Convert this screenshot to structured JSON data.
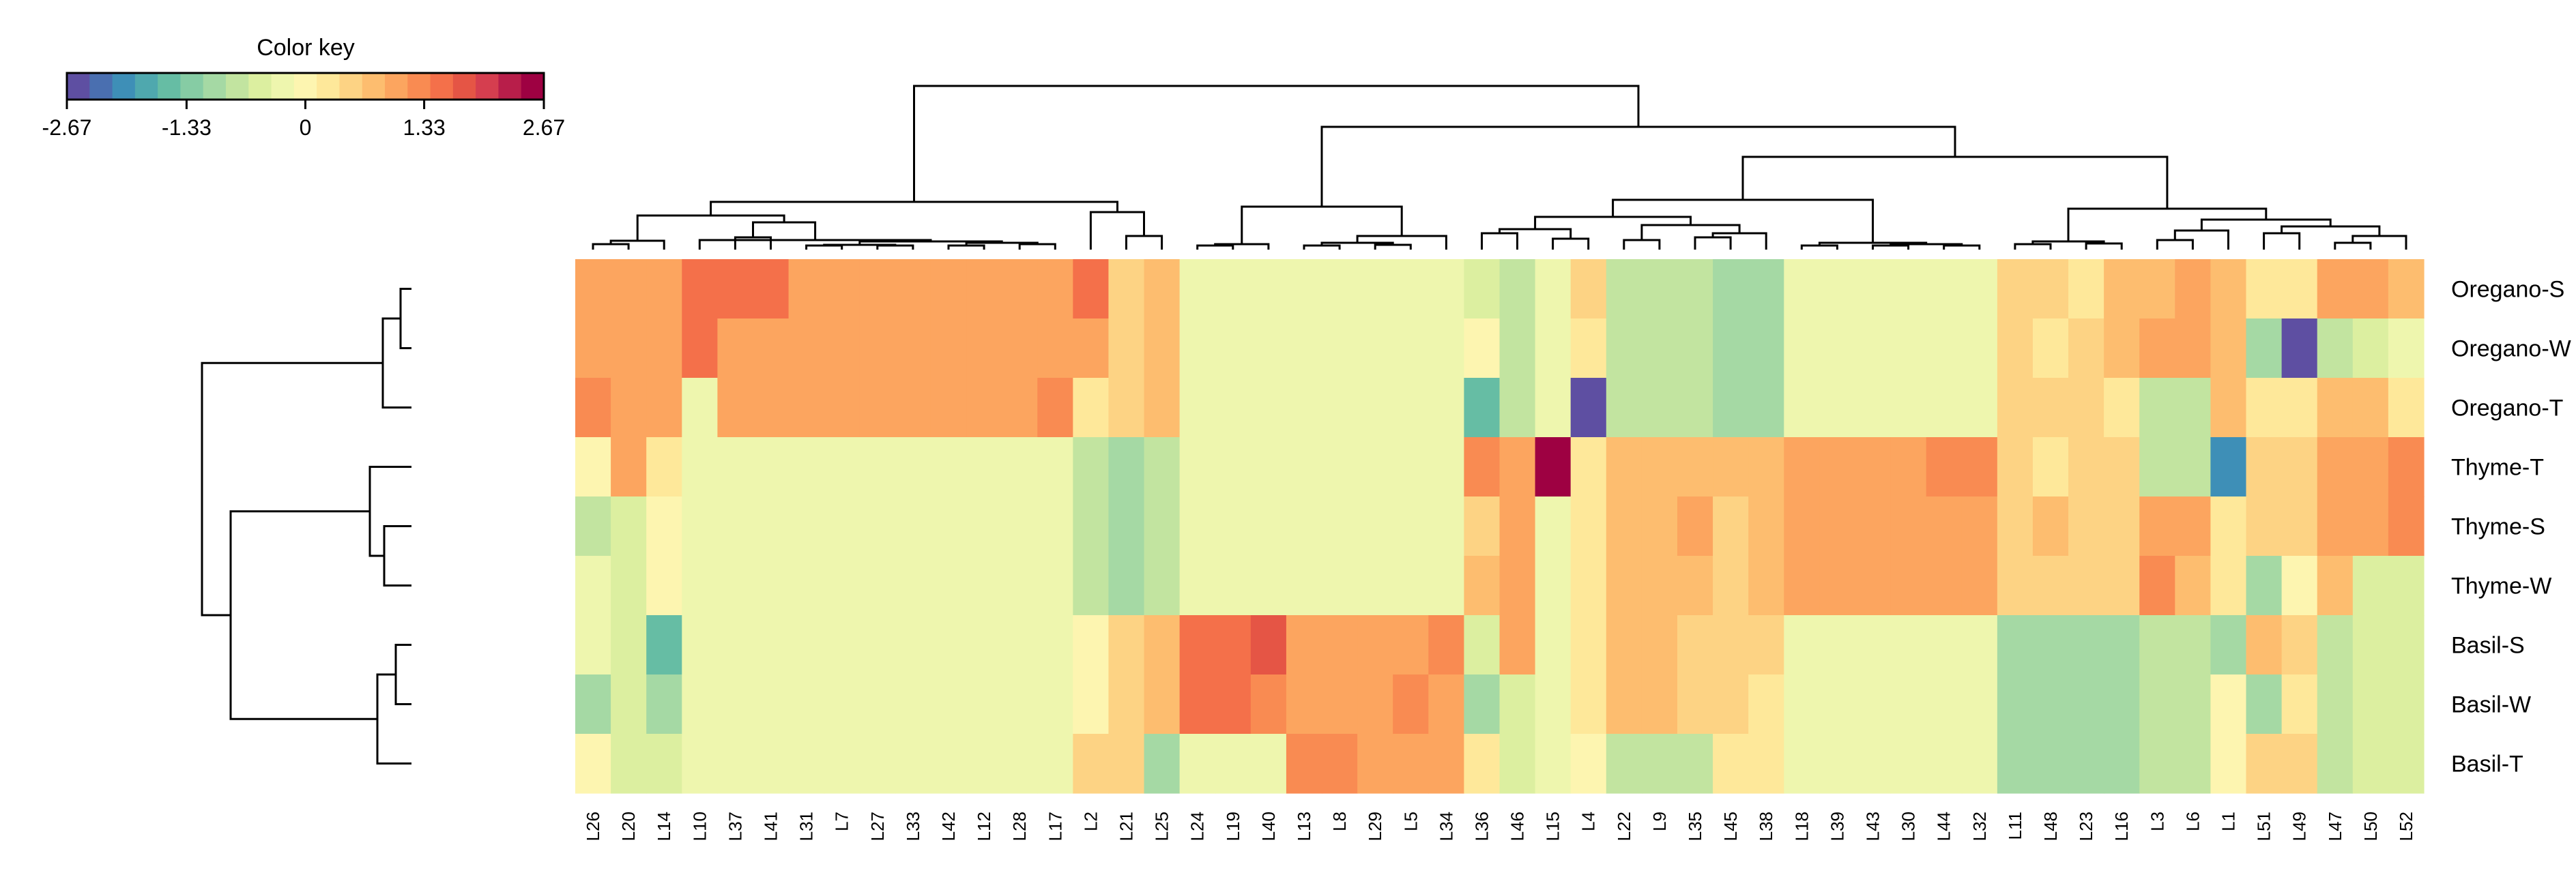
{
  "chart_data": {
    "type": "heatmap",
    "title": "",
    "color_key": {
      "title": "Color key",
      "min": -2.67,
      "max": 2.67,
      "tick_values": [
        -2.67,
        -1.33,
        0,
        1.33,
        2.67
      ],
      "tick_labels": [
        "-2.67",
        "-1.33",
        "0",
        "1.33",
        "2.67"
      ],
      "palette": [
        "#5E4FA2",
        "#4A6FB0",
        "#3E8FB7",
        "#4FA8AE",
        "#66BDA4",
        "#86CCA4",
        "#A5D9A4",
        "#C2E4A0",
        "#DCEFA0",
        "#EEF6AE",
        "#FDF5B0",
        "#FEE89A",
        "#FDD384",
        "#FDBD6F",
        "#FCA55F",
        "#F98B52",
        "#F4704A",
        "#E55545",
        "#D53E4F",
        "#B81E4A",
        "#9E0142"
      ]
    },
    "row_labels": [
      "Oregano-S",
      "Oregano-W",
      "Oregano-T",
      "Thyme-T",
      "Thyme-S",
      "Thyme-W",
      "Basil-S",
      "Basil-W",
      "Basil-T"
    ],
    "column_labels": [
      "L26",
      "L20",
      "L14",
      "L10",
      "L37",
      "L41",
      "L31",
      "L7",
      "L27",
      "L33",
      "L42",
      "L12",
      "L28",
      "L17",
      "L2",
      "L21",
      "L25",
      "L24",
      "L19",
      "L40",
      "L13",
      "L8",
      "L29",
      "L5",
      "L34",
      "L36",
      "L46",
      "L15",
      "L4",
      "L22",
      "L9",
      "L35",
      "L45",
      "L38",
      "L18",
      "L39",
      "L43",
      "L30",
      "L44",
      "L32",
      "L11",
      "L48",
      "L23",
      "L16",
      "L3",
      "L6",
      "L1",
      "L51",
      "L49",
      "L47",
      "L50",
      "L52"
    ],
    "values": [
      [
        1.1,
        1.0,
        1.0,
        1.6,
        1.5,
        1.5,
        1.2,
        1.2,
        1.2,
        1.2,
        1.2,
        1.2,
        1.2,
        1.2,
        1.6,
        0.6,
        0.8,
        -0.2,
        -0.2,
        -0.2,
        -0.4,
        -0.4,
        -0.4,
        -0.4,
        -0.4,
        -0.6,
        -0.9,
        -0.3,
        0.6,
        -0.9,
        -0.9,
        -0.9,
        -1.1,
        -1.1,
        -0.4,
        -0.4,
        -0.4,
        -0.4,
        -0.4,
        -0.4,
        0.6,
        0.6,
        0.4,
        0.8,
        0.8,
        1.0,
        0.8,
        0.3,
        0.2,
        1.0,
        1.2,
        0.8
      ],
      [
        1.0,
        1.0,
        1.0,
        1.5,
        1.2,
        1.2,
        1.2,
        1.2,
        1.2,
        1.2,
        1.2,
        1.2,
        1.2,
        1.2,
        1.2,
        0.6,
        0.8,
        -0.2,
        -0.2,
        -0.2,
        -0.4,
        -0.4,
        -0.4,
        -0.4,
        -0.4,
        0.05,
        -0.9,
        -0.3,
        0.4,
        -0.9,
        -0.9,
        -0.9,
        -1.1,
        -1.1,
        -0.4,
        -0.4,
        -0.4,
        -0.4,
        -0.4,
        -0.4,
        0.6,
        0.3,
        0.6,
        0.9,
        1.0,
        1.0,
        0.8,
        -1.2,
        -2.6,
        -0.9,
        -0.6,
        -0.3
      ],
      [
        1.3,
        1.0,
        1.0,
        -0.2,
        1.2,
        1.2,
        1.2,
        1.2,
        1.2,
        1.2,
        1.2,
        1.2,
        1.2,
        1.4,
        0.2,
        0.6,
        0.8,
        -0.2,
        -0.2,
        -0.2,
        -0.4,
        -0.4,
        -0.4,
        -0.4,
        -0.4,
        -1.5,
        -0.9,
        -0.3,
        -2.6,
        -0.9,
        -0.9,
        -0.9,
        -1.1,
        -1.1,
        -0.4,
        -0.4,
        -0.4,
        -0.4,
        -0.4,
        -0.4,
        0.6,
        0.6,
        0.6,
        0.3,
        -0.8,
        -0.8,
        0.8,
        0.4,
        0.2,
        0.9,
        0.9,
        0.2
      ],
      [
        0.05,
        1.0,
        0.4,
        -0.3,
        -0.4,
        -0.4,
        -0.4,
        -0.4,
        -0.4,
        -0.4,
        -0.4,
        -0.4,
        -0.4,
        -0.4,
        -0.9,
        -1.1,
        -0.8,
        -0.2,
        -0.2,
        -0.2,
        -0.4,
        -0.4,
        -0.4,
        -0.4,
        -0.4,
        1.3,
        1.0,
        2.6,
        0.2,
        0.8,
        0.8,
        0.8,
        0.8,
        0.8,
        1.1,
        1.1,
        1.1,
        1.1,
        1.3,
        1.3,
        0.6,
        0.4,
        0.6,
        0.6,
        -0.8,
        -0.8,
        -2.1,
        0.6,
        0.5,
        1.0,
        1.0,
        1.3
      ],
      [
        -0.9,
        -0.5,
        0.1,
        -0.3,
        -0.4,
        -0.4,
        -0.4,
        -0.4,
        -0.4,
        -0.4,
        -0.4,
        -0.4,
        -0.4,
        -0.4,
        -0.9,
        -1.1,
        -0.8,
        -0.2,
        -0.2,
        -0.2,
        -0.4,
        -0.4,
        -0.4,
        -0.4,
        -0.4,
        0.6,
        1.0,
        -0.3,
        0.2,
        0.8,
        0.8,
        1.0,
        0.5,
        0.8,
        1.1,
        1.1,
        1.1,
        1.1,
        1.1,
        1.1,
        0.6,
        0.9,
        0.6,
        0.6,
        1.1,
        1.1,
        0.2,
        0.6,
        0.5,
        1.0,
        1.0,
        1.4
      ],
      [
        -0.4,
        -0.5,
        0.1,
        -0.3,
        -0.4,
        -0.4,
        -0.4,
        -0.4,
        -0.4,
        -0.4,
        -0.4,
        -0.4,
        -0.4,
        -0.4,
        -0.9,
        -1.1,
        -0.8,
        -0.2,
        -0.2,
        -0.2,
        -0.4,
        -0.4,
        -0.4,
        -0.4,
        -0.4,
        0.9,
        1.0,
        -0.3,
        0.2,
        0.8,
        0.8,
        0.8,
        0.6,
        0.8,
        1.1,
        1.1,
        1.1,
        1.1,
        1.1,
        1.1,
        0.6,
        0.6,
        0.6,
        0.6,
        1.3,
        0.9,
        0.3,
        -1.2,
        0.05,
        0.8,
        -0.6,
        -0.6
      ],
      [
        -0.4,
        -0.5,
        -1.5,
        -0.3,
        -0.4,
        -0.4,
        -0.4,
        -0.4,
        -0.4,
        -0.4,
        -0.4,
        -0.4,
        -0.4,
        -0.4,
        0.1,
        0.6,
        0.8,
        1.5,
        1.5,
        1.8,
        1.1,
        1.1,
        1.1,
        1.1,
        1.3,
        -0.6,
        1.0,
        -0.3,
        0.2,
        0.8,
        0.8,
        0.5,
        0.5,
        0.5,
        -0.4,
        -0.4,
        -0.4,
        -0.4,
        -0.4,
        -0.4,
        -1.2,
        -1.2,
        -1.2,
        -1.2,
        -0.8,
        -0.8,
        -1.0,
        0.8,
        0.5,
        -0.9,
        -0.6,
        -0.6
      ],
      [
        -1.1,
        -0.5,
        -1.1,
        -0.3,
        -0.4,
        -0.4,
        -0.4,
        -0.4,
        -0.4,
        -0.4,
        -0.4,
        -0.4,
        -0.4,
        -0.4,
        0.1,
        0.6,
        0.8,
        1.5,
        1.5,
        1.3,
        1.1,
        1.1,
        1.1,
        1.3,
        1.1,
        -1.0,
        -0.6,
        -0.3,
        0.2,
        0.8,
        0.8,
        0.5,
        0.5,
        0.4,
        -0.4,
        -0.4,
        -0.4,
        -0.4,
        -0.4,
        -0.4,
        -1.2,
        -1.2,
        -1.2,
        -1.2,
        -0.8,
        -0.8,
        0.05,
        -1.2,
        0.2,
        -0.9,
        -0.6,
        -0.6
      ],
      [
        0.05,
        -0.6,
        -0.6,
        -0.3,
        -0.4,
        -0.4,
        -0.4,
        -0.4,
        -0.4,
        -0.4,
        -0.4,
        -0.4,
        -0.4,
        -0.4,
        0.6,
        0.6,
        -1.0,
        -0.2,
        -0.2,
        -0.2,
        1.3,
        1.3,
        1.1,
        1.1,
        1.1,
        0.4,
        -0.6,
        -0.3,
        0.05,
        -0.9,
        -0.9,
        -0.9,
        0.4,
        0.4,
        -0.4,
        -0.4,
        -0.4,
        -0.4,
        -0.4,
        -0.4,
        -1.2,
        -1.2,
        -1.2,
        -1.2,
        -0.8,
        -0.8,
        0.05,
        0.6,
        0.6,
        -0.9,
        -0.6,
        -0.6
      ]
    ]
  }
}
